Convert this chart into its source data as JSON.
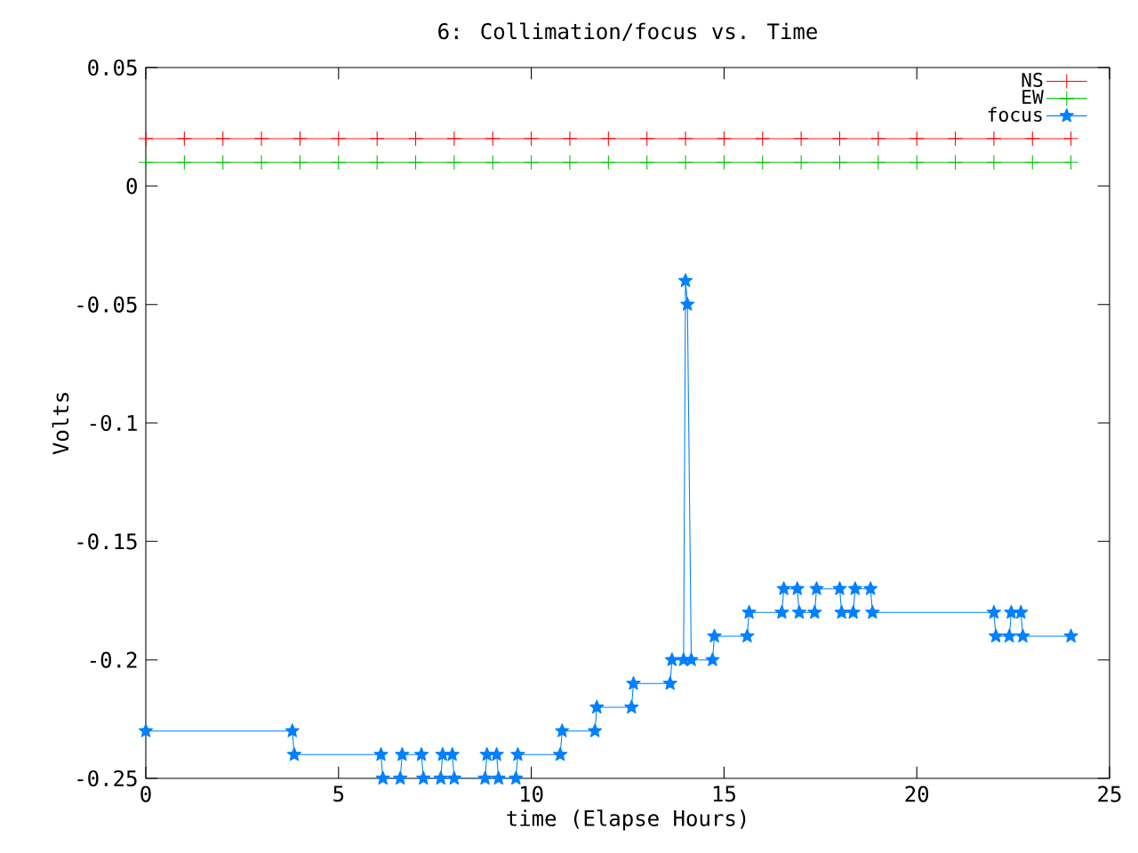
{
  "chart_data": {
    "type": "line",
    "title": "6: Collimation/focus vs. Time",
    "xlabel": "time (Elapse Hours)",
    "ylabel": "Volts",
    "xlim": [
      0,
      25
    ],
    "xticks": [
      0,
      5,
      10,
      15,
      20,
      25
    ],
    "ylim": [
      -0.25,
      0.05
    ],
    "yticks": [
      -0.25,
      -0.2,
      -0.15,
      -0.1,
      -0.05,
      0,
      0.05
    ],
    "grid": false,
    "legend": "top right",
    "line_style": "solid",
    "series": [
      {
        "name": "NS",
        "color": "#ff0000",
        "marker": "cross",
        "x": [
          0,
          1,
          2,
          3,
          4,
          5,
          6,
          7,
          8,
          9,
          10,
          11,
          12,
          13,
          14,
          15,
          16,
          17,
          18,
          19,
          20,
          21,
          22,
          23,
          24
        ],
        "values": [
          0.02,
          0.02,
          0.02,
          0.02,
          0.02,
          0.02,
          0.02,
          0.02,
          0.02,
          0.02,
          0.02,
          0.02,
          0.02,
          0.02,
          0.02,
          0.02,
          0.02,
          0.02,
          0.02,
          0.02,
          0.02,
          0.02,
          0.02,
          0.02,
          0.02
        ]
      },
      {
        "name": "EW",
        "color": "#00c000",
        "marker": "cross",
        "x": [
          0,
          1,
          2,
          3,
          4,
          5,
          6,
          7,
          8,
          9,
          10,
          11,
          12,
          13,
          14,
          15,
          16,
          17,
          18,
          19,
          20,
          21,
          22,
          23,
          24
        ],
        "values": [
          0.01,
          0.01,
          0.01,
          0.01,
          0.01,
          0.01,
          0.01,
          0.01,
          0.01,
          0.01,
          0.01,
          0.01,
          0.01,
          0.01,
          0.01,
          0.01,
          0.01,
          0.01,
          0.01,
          0.01,
          0.01,
          0.01,
          0.01,
          0.01,
          0.01
        ]
      },
      {
        "name": "focus",
        "color": "#0080ff",
        "marker": "star",
        "x": [
          0,
          3.8,
          3.85,
          6.1,
          6.15,
          6.6,
          6.65,
          7.15,
          7.2,
          7.65,
          7.7,
          7.95,
          8.0,
          8.8,
          8.85,
          9.1,
          9.15,
          9.6,
          9.65,
          10.75,
          10.8,
          11.65,
          11.7,
          12.6,
          12.65,
          13.6,
          13.65,
          13.95,
          14.0,
          14.05,
          14.15,
          14.7,
          14.75,
          15.6,
          15.65,
          16.5,
          16.55,
          16.9,
          16.95,
          17.35,
          17.4,
          18.0,
          18.05,
          18.35,
          18.4,
          18.8,
          18.85,
          22.0,
          22.05,
          22.4,
          22.45,
          22.7,
          22.75,
          24.0
        ],
        "values": [
          -0.23,
          -0.23,
          -0.24,
          -0.24,
          -0.25,
          -0.25,
          -0.24,
          -0.24,
          -0.25,
          -0.25,
          -0.24,
          -0.24,
          -0.25,
          -0.25,
          -0.24,
          -0.24,
          -0.25,
          -0.25,
          -0.24,
          -0.24,
          -0.23,
          -0.23,
          -0.22,
          -0.22,
          -0.21,
          -0.21,
          -0.2,
          -0.2,
          -0.04,
          -0.05,
          -0.2,
          -0.2,
          -0.19,
          -0.19,
          -0.18,
          -0.18,
          -0.17,
          -0.17,
          -0.18,
          -0.18,
          -0.17,
          -0.17,
          -0.18,
          -0.18,
          -0.17,
          -0.17,
          -0.18,
          -0.18,
          -0.19,
          -0.19,
          -0.18,
          -0.18,
          -0.19,
          -0.19
        ]
      }
    ]
  }
}
